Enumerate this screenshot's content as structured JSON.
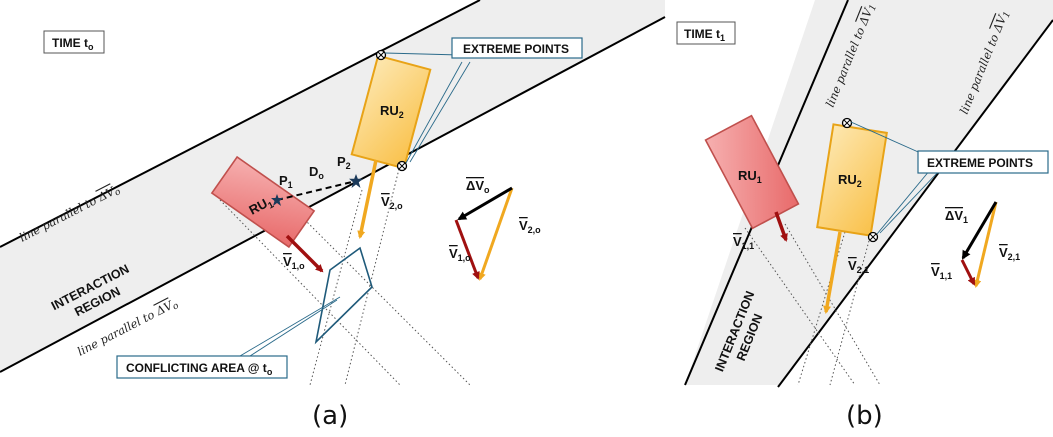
{
  "panel_a": {
    "time_prefix": "TIME t",
    "time_sub": "o",
    "extreme_points": "EXTREME POINTS",
    "line_parallel_top": "line parallel to",
    "line_parallel_bottom": "line parallel to",
    "delta_v_symbol": "ΔV",
    "delta_v_sub": "o",
    "interaction_line1": "INTERACTION",
    "interaction_line2": "REGION",
    "ru1_main": "RU",
    "ru1_sub": "1",
    "ru2_main": "RU",
    "ru2_sub": "2",
    "p1_main": "P",
    "p1_sub": "1",
    "p2_main": "P",
    "p2_sub": "2",
    "d_main": "D",
    "d_sub": "o",
    "v2_main": "V",
    "v2_sub": "2,o",
    "v1_main": "V",
    "v1_sub": "1,o",
    "tri_dv_main": "ΔV",
    "tri_dv_sub": "o",
    "tri_v2_main": "V",
    "tri_v2_sub": "2,o",
    "tri_v1_main": "V",
    "tri_v1_sub": "1,o",
    "conflict_prefix": "CONFLICTING AREA @ t",
    "conflict_sub": "o",
    "caption": "(a)"
  },
  "panel_b": {
    "time_prefix": "TIME t",
    "time_sub": "1",
    "extreme_points": "EXTREME POINTS",
    "line_parallel_left": "line parallel to",
    "line_parallel_right": "line parallel to",
    "delta_v_symbol": "ΔV",
    "delta_v_sub": "1",
    "interaction_line1": "INTERACTION",
    "interaction_line2": "REGION",
    "ru1_main": "RU",
    "ru1_sub": "1",
    "ru2_main": "RU",
    "ru2_sub": "2",
    "v11_main": "V",
    "v11_sub": "1,1",
    "v21_main": "V",
    "v21_sub": "2,1",
    "tri_dv_main": "ΔV",
    "tri_dv_sub": "1",
    "tri_v2_main": "V",
    "tri_v2_sub": "2,1",
    "tri_v1_main": "V",
    "tri_v1_sub": "1,1",
    "caption": "(b)"
  },
  "colors": {
    "band_fill": "#eeeeee",
    "ru1_fill": "#f08c8c",
    "ru1_stroke": "#c0504d",
    "ru2_fill": "#fcd27a",
    "ru2_stroke": "#e8a317",
    "arrow_red": "#a01010",
    "arrow_orange": "#f0a820",
    "arrow_black": "#000000",
    "conflict_stroke": "#1f5a7a",
    "callout_stroke": "#2a6a8a"
  }
}
